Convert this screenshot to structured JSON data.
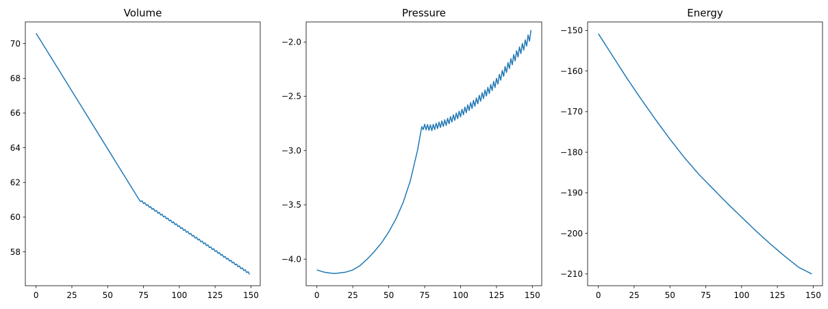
{
  "chart_data": [
    {
      "type": "line",
      "title": "Volume",
      "xlabel": "",
      "ylabel": "",
      "xlim": [
        -7.5,
        156.5
      ],
      "ylim": [
        56.05,
        71.25
      ],
      "xticks": [
        0,
        25,
        50,
        75,
        100,
        125,
        150
      ],
      "yticks": [
        58,
        60,
        62,
        64,
        66,
        68,
        70
      ],
      "grid": false,
      "color": "#1f77b4",
      "segments": [
        {
          "x_start": 0,
          "x_end": 72,
          "y_start": 70.6,
          "y_end": 61.0,
          "oscillation_amplitude": 0
        },
        {
          "x_start": 72,
          "x_end": 149,
          "y_start": 61.0,
          "y_end": 56.75,
          "oscillation_amplitude": 0.05
        }
      ]
    },
    {
      "type": "line",
      "title": "Pressure",
      "xlabel": "",
      "ylabel": "",
      "xlim": [
        -7.5,
        156.5
      ],
      "ylim": [
        -4.245,
        -1.815
      ],
      "xticks": [
        0,
        25,
        50,
        75,
        100,
        125,
        150
      ],
      "yticks": [
        -4.0,
        -3.5,
        -3.0,
        -2.5,
        -2.0
      ],
      "ytick_labels": [
        "−4.0",
        "−3.5",
        "−3.0",
        "−2.5",
        "−2.0"
      ],
      "grid": false,
      "color": "#1f77b4",
      "points": [
        [
          0,
          -4.1
        ],
        [
          5,
          -4.12
        ],
        [
          10,
          -4.13
        ],
        [
          13,
          -4.132
        ],
        [
          20,
          -4.12
        ],
        [
          25,
          -4.1
        ],
        [
          30,
          -4.06
        ],
        [
          35,
          -4.0
        ],
        [
          40,
          -3.93
        ],
        [
          45,
          -3.85
        ],
        [
          50,
          -3.75
        ],
        [
          55,
          -3.63
        ],
        [
          60,
          -3.48
        ],
        [
          65,
          -3.28
        ],
        [
          70,
          -3.0
        ],
        [
          73,
          -2.78
        ],
        [
          80,
          -2.79
        ],
        [
          90,
          -2.74
        ],
        [
          100,
          -2.66
        ],
        [
          110,
          -2.56
        ],
        [
          115,
          -2.5
        ],
        [
          120,
          -2.44
        ],
        [
          125,
          -2.37
        ],
        [
          130,
          -2.28
        ],
        [
          135,
          -2.19
        ],
        [
          140,
          -2.1
        ],
        [
          145,
          -2.02
        ],
        [
          149,
          -1.93
        ]
      ],
      "oscillation_start_x": 73,
      "oscillation_amplitude_start": 0.025,
      "oscillation_amplitude_end": 0.04
    },
    {
      "type": "line",
      "title": "Energy",
      "xlabel": "",
      "ylabel": "",
      "xlim": [
        -7.5,
        156.5
      ],
      "ylim": [
        -212.9,
        -147.9
      ],
      "xticks": [
        0,
        25,
        50,
        75,
        100,
        125,
        150
      ],
      "yticks": [
        -210,
        -200,
        -190,
        -180,
        -170,
        -160,
        -150
      ],
      "ytick_labels": [
        "−210",
        "−200",
        "−190",
        "−180",
        "−170",
        "−160",
        "−150"
      ],
      "grid": false,
      "color": "#1f77b4",
      "points": [
        [
          0,
          -150.8
        ],
        [
          10,
          -156.3
        ],
        [
          20,
          -161.8
        ],
        [
          30,
          -167.0
        ],
        [
          40,
          -172.0
        ],
        [
          50,
          -176.8
        ],
        [
          60,
          -181.3
        ],
        [
          70,
          -185.4
        ],
        [
          80,
          -189.0
        ],
        [
          90,
          -192.6
        ],
        [
          100,
          -196.0
        ],
        [
          110,
          -199.4
        ],
        [
          120,
          -202.6
        ],
        [
          130,
          -205.6
        ],
        [
          140,
          -208.4
        ],
        [
          149,
          -210.0
        ]
      ]
    }
  ]
}
